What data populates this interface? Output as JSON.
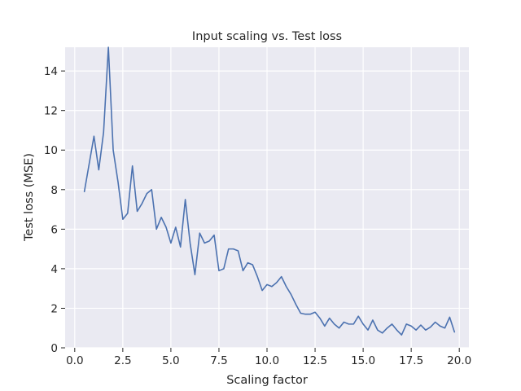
{
  "chart_data": {
    "type": "line",
    "title": "Input scaling vs. Test loss",
    "xlabel": "Scaling factor",
    "ylabel": "Test loss (MSE)",
    "xlim": [
      -0.5,
      20.5
    ],
    "ylim": [
      0,
      15.2
    ],
    "xticks": [
      0,
      2.5,
      5,
      7.5,
      10,
      12.5,
      15,
      17.5,
      20
    ],
    "xtick_labels": [
      "0.0",
      "2.5",
      "5.0",
      "7.5",
      "10.0",
      "12.5",
      "15.0",
      "17.5",
      "20.0"
    ],
    "yticks": [
      0,
      2,
      4,
      6,
      8,
      10,
      12,
      14
    ],
    "ytick_labels": [
      "0",
      "2",
      "4",
      "6",
      "8",
      "10",
      "12",
      "14"
    ],
    "grid": true,
    "background_color": "#eaeaf2",
    "series": [
      {
        "color": "#4c72b0",
        "x": [
          0.5,
          0.75,
          1.0,
          1.25,
          1.5,
          1.75,
          2.0,
          2.25,
          2.5,
          2.75,
          3.0,
          3.25,
          3.5,
          3.75,
          4.0,
          4.25,
          4.5,
          4.75,
          5.0,
          5.25,
          5.5,
          5.75,
          6.0,
          6.25,
          6.5,
          6.75,
          7.0,
          7.25,
          7.5,
          7.75,
          8.0,
          8.25,
          8.5,
          8.75,
          9.0,
          9.25,
          9.5,
          9.75,
          10.0,
          10.25,
          10.5,
          10.75,
          11.0,
          11.25,
          11.5,
          11.75,
          12.0,
          12.25,
          12.5,
          12.75,
          13.0,
          13.25,
          13.5,
          13.75,
          14.0,
          14.25,
          14.5,
          14.75,
          15.0,
          15.25,
          15.5,
          15.75,
          16.0,
          16.25,
          16.5,
          16.75,
          17.0,
          17.25,
          17.5,
          17.75,
          18.0,
          18.25,
          18.5,
          18.75,
          19.0,
          19.25,
          19.5,
          19.75
        ],
        "values": [
          7.9,
          9.3,
          10.7,
          9.0,
          10.9,
          15.2,
          10.0,
          8.4,
          6.5,
          6.8,
          9.2,
          6.9,
          7.3,
          7.8,
          8.0,
          6.0,
          6.6,
          6.1,
          5.3,
          6.1,
          5.1,
          7.5,
          5.3,
          3.7,
          5.8,
          5.3,
          5.4,
          5.7,
          3.9,
          4.0,
          5.0,
          5.0,
          4.9,
          3.9,
          4.3,
          4.2,
          3.6,
          2.9,
          3.2,
          3.1,
          3.3,
          3.6,
          3.1,
          2.7,
          2.2,
          1.75,
          1.7,
          1.7,
          1.8,
          1.5,
          1.1,
          1.5,
          1.2,
          1.0,
          1.3,
          1.2,
          1.2,
          1.6,
          1.2,
          0.9,
          1.4,
          0.9,
          0.75,
          1.0,
          1.2,
          0.9,
          0.65,
          1.2,
          1.1,
          0.9,
          1.15,
          0.9,
          1.05,
          1.3,
          1.1,
          1.0,
          1.55,
          0.8
        ]
      }
    ]
  }
}
